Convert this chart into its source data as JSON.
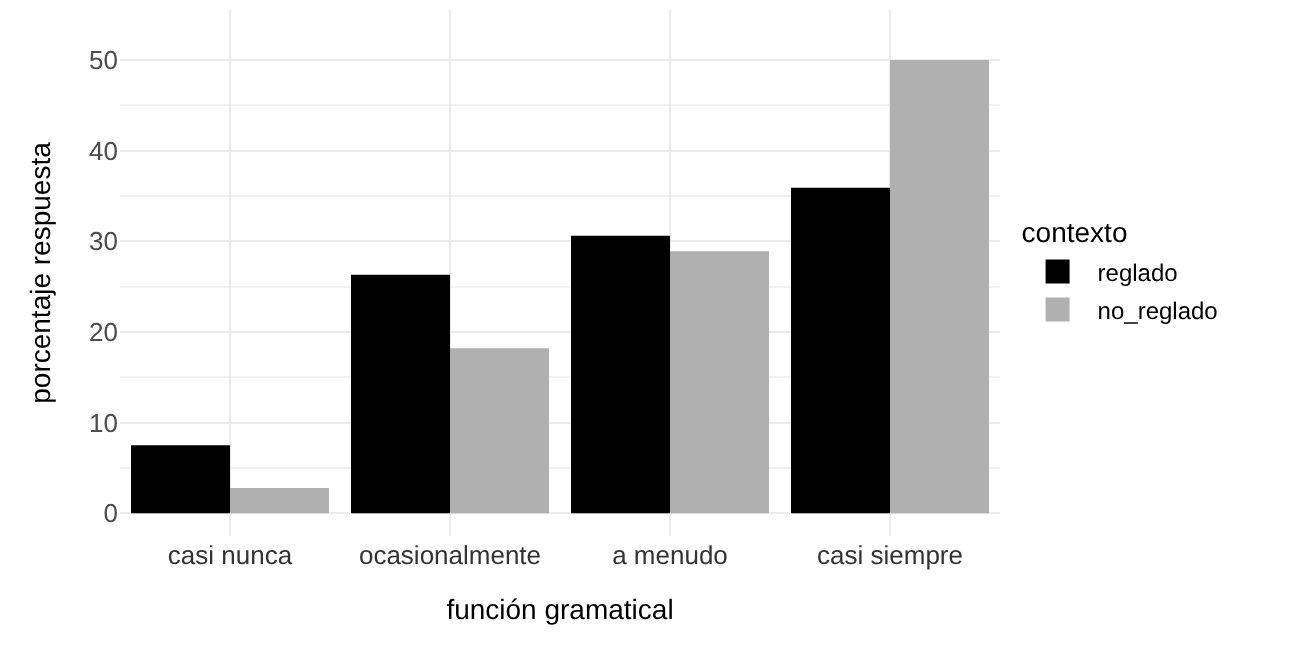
{
  "chart_data": {
    "type": "bar",
    "xlabel": "función gramatical",
    "ylabel": "porcentaje respuesta",
    "legend_title": "contexto",
    "categories": [
      "casi nunca",
      "ocasionalmente",
      "a menudo",
      "casi siempre"
    ],
    "series": [
      {
        "name": "reglado",
        "color": "#000000",
        "values": [
          7.5,
          26.3,
          30.6,
          35.9
        ]
      },
      {
        "name": "no_reglado",
        "color": "#b0b0b0",
        "values": [
          2.8,
          18.2,
          28.9,
          50.0
        ]
      }
    ],
    "ylim": [
      -2.5,
      55.5
    ],
    "yticks": [
      0,
      10,
      20,
      30,
      40,
      50
    ],
    "grid": true,
    "legend": "right"
  }
}
